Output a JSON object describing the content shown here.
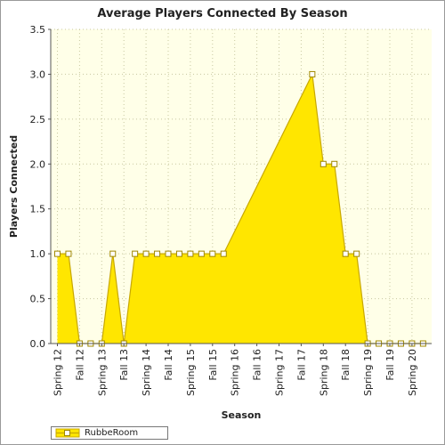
{
  "chart_data": {
    "type": "area",
    "title": "Average Players Connected By Season",
    "xlabel": "Season",
    "ylabel": "Players Connected",
    "ylim": [
      0,
      3.5
    ],
    "yticks": [
      "0.0",
      "0.5",
      "1.0",
      "1.5",
      "2.0",
      "2.5",
      "3.0",
      "3.5"
    ],
    "categories": [
      "Spring 12",
      "Fall 12",
      "Spring 13",
      "Fall 13",
      "Spring 14",
      "Fall 14",
      "Spring 15",
      "Fall 15",
      "Spring 16",
      "Fall 16",
      "Spring 17",
      "Fall 17",
      "Spring 18",
      "Fall 18",
      "Spring 19",
      "Fall 19",
      "Spring 20"
    ],
    "grid": true,
    "legend": "bottom-left",
    "colors": {
      "fill": "#ffe600",
      "line": "#c8a800",
      "plot_bg": "#ffffe8",
      "grid": "#c8c8a0"
    },
    "series": [
      {
        "name": "RubbeRoom",
        "points": [
          {
            "x": 0,
            "y": 1
          },
          {
            "x": 0.5,
            "y": 1
          },
          {
            "x": 1,
            "y": 0
          },
          {
            "x": 1.5,
            "y": 0
          },
          {
            "x": 2,
            "y": 0
          },
          {
            "x": 2.5,
            "y": 1
          },
          {
            "x": 3,
            "y": 0
          },
          {
            "x": 3.5,
            "y": 1
          },
          {
            "x": 4,
            "y": 1
          },
          {
            "x": 4.5,
            "y": 1
          },
          {
            "x": 5,
            "y": 1
          },
          {
            "x": 5.5,
            "y": 1
          },
          {
            "x": 6,
            "y": 1
          },
          {
            "x": 6.5,
            "y": 1
          },
          {
            "x": 7,
            "y": 1
          },
          {
            "x": 7.5,
            "y": 1
          },
          {
            "x": 11.5,
            "y": 3
          },
          {
            "x": 12,
            "y": 2
          },
          {
            "x": 12.5,
            "y": 2
          },
          {
            "x": 13,
            "y": 1
          },
          {
            "x": 13.5,
            "y": 1
          },
          {
            "x": 14,
            "y": 0
          },
          {
            "x": 14.5,
            "y": 0
          },
          {
            "x": 15,
            "y": 0
          },
          {
            "x": 15.5,
            "y": 0
          },
          {
            "x": 16,
            "y": 0
          },
          {
            "x": 16.5,
            "y": 0
          }
        ]
      }
    ]
  }
}
